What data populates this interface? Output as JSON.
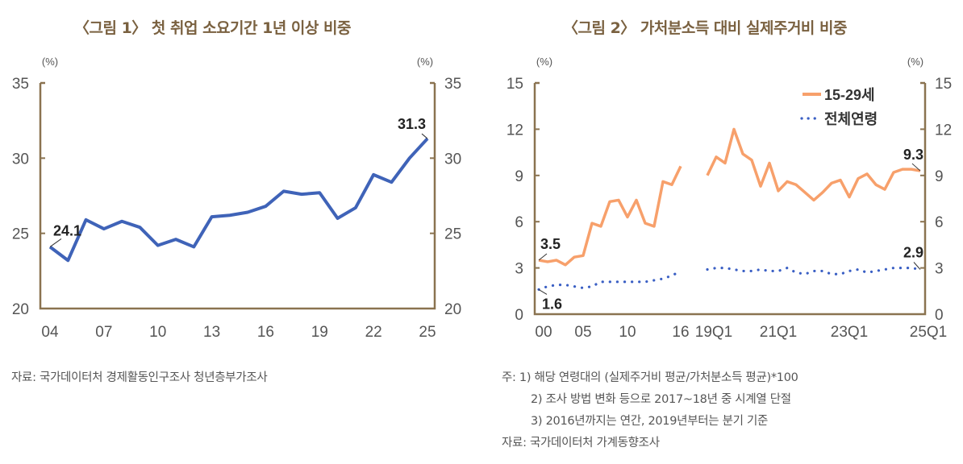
{
  "figure1": {
    "title": "〈그림 1〉 첫 취업 소요기간 1년 이상 비중",
    "source": "자료:  국가데이터처 경제활동인구조사 청년층부가조사"
  },
  "figure2": {
    "title": "〈그림 2〉 가처분소득 대비 실제주거비 비중",
    "notes": [
      "주:  1) 해당 연령대의 (실제주거비 평균/가처분소득 평균)*100",
      "2) 조사 방법 변화 등으로 2017~18년 중 시계열 단절",
      "3) 2016년까지는 연간, 2019년부터는 분기 기준"
    ],
    "source": "자료:  국가데이터처 가계동향조사"
  },
  "colors": {
    "axis": "#8a7350",
    "blue": "#3f63b8",
    "orange": "#f7a06b",
    "dots": "#3a5fc4",
    "text": "#555555"
  },
  "chart_data": [
    {
      "type": "line",
      "title": "〈그림 1〉 첫 취업 소요기간 1년 이상 비중",
      "ylabel_left": "(%)",
      "ylabel_right": "(%)",
      "ylim": [
        20,
        35
      ],
      "yticks": [
        "20",
        "25",
        "30",
        "35"
      ],
      "x": [
        "04",
        "05",
        "06",
        "07",
        "08",
        "09",
        "10",
        "11",
        "12",
        "13",
        "14",
        "15",
        "16",
        "17",
        "18",
        "19",
        "20",
        "21",
        "22",
        "23",
        "24",
        "25"
      ],
      "xtick_labels": [
        "04",
        "07",
        "10",
        "13",
        "16",
        "19",
        "22",
        "25"
      ],
      "series": [
        {
          "name": "첫 취업 소요기간 1년 이상 비중",
          "values": [
            24.1,
            23.2,
            25.9,
            25.3,
            25.8,
            25.4,
            24.2,
            24.6,
            24.1,
            26.1,
            26.2,
            26.4,
            26.8,
            27.8,
            27.6,
            27.7,
            26.0,
            26.7,
            28.9,
            28.4,
            30.0,
            31.3
          ]
        }
      ],
      "annotations": [
        "24.1",
        "31.3"
      ],
      "grid": false
    },
    {
      "type": "line",
      "title": "〈그림 2〉 가처분소득 대비 실제주거비 비중",
      "ylabel_left": "(%)",
      "ylabel_right": "(%)",
      "ylim": [
        0,
        15
      ],
      "yticks": [
        "0",
        "3",
        "6",
        "9",
        "12",
        "15"
      ],
      "x_annual": [
        "00",
        "01",
        "02",
        "03",
        "04",
        "05",
        "06",
        "07",
        "08",
        "09",
        "10",
        "11",
        "12",
        "13",
        "14",
        "15",
        "16"
      ],
      "x_quarterly": [
        "19Q1",
        "19Q2",
        "19Q3",
        "19Q4",
        "20Q1",
        "20Q2",
        "20Q3",
        "20Q4",
        "21Q1",
        "21Q2",
        "21Q3",
        "21Q4",
        "22Q1",
        "22Q2",
        "22Q3",
        "22Q4",
        "23Q1",
        "23Q2",
        "23Q3",
        "23Q4",
        "24Q1",
        "24Q2",
        "24Q3",
        "24Q4",
        "25Q1"
      ],
      "xtick_labels": [
        "00",
        "05",
        "10",
        "16",
        "19Q1",
        "21Q1",
        "23Q1",
        "25Q1"
      ],
      "legend_position": "top-right",
      "series": [
        {
          "name": "15-29세",
          "style": "solid",
          "annual": [
            3.5,
            3.4,
            3.5,
            3.2,
            3.7,
            3.8,
            5.9,
            5.7,
            7.3,
            7.4,
            6.3,
            7.4,
            5.9,
            5.7,
            8.6,
            8.4,
            9.6
          ],
          "quarterly": [
            9.0,
            10.2,
            9.8,
            12.0,
            10.4,
            10.0,
            8.3,
            9.8,
            8.0,
            8.6,
            8.4,
            7.9,
            7.4,
            7.9,
            8.5,
            8.7,
            7.6,
            8.8,
            9.1,
            8.4,
            8.1,
            9.2,
            9.4,
            9.4,
            9.3
          ]
        },
        {
          "name": "전체연령",
          "style": "dotted",
          "annual": [
            1.6,
            1.8,
            1.9,
            1.9,
            1.8,
            1.7,
            1.8,
            2.1,
            2.1,
            2.1,
            2.1,
            2.1,
            2.1,
            2.2,
            2.3,
            2.5,
            2.8
          ],
          "quarterly": [
            2.9,
            3.0,
            3.0,
            2.9,
            2.8,
            2.8,
            2.9,
            2.8,
            2.8,
            3.0,
            2.7,
            2.6,
            2.8,
            2.8,
            2.6,
            2.6,
            2.8,
            2.9,
            2.7,
            2.8,
            2.9,
            3.0,
            3.0,
            3.0,
            2.9
          ]
        }
      ],
      "annotations": [
        "3.5",
        "1.6",
        "9.3",
        "2.9"
      ],
      "grid": false
    }
  ]
}
